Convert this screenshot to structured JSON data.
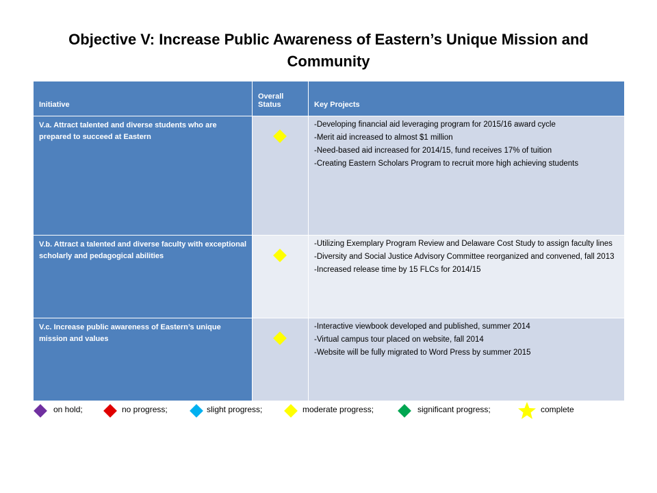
{
  "title": "Objective V: Increase Public Awareness of Eastern’s Unique Mission and Community",
  "colors": {
    "header_blue": "#4f81bd",
    "row_light": "#d0d8e8",
    "row_lighter": "#e9edf4",
    "purple": "#7030a0",
    "red": "#e00000",
    "blue": "#00b0f0",
    "yellow": "#ffff00",
    "green": "#00a651"
  },
  "table": {
    "headers": {
      "initiative": "Initiative",
      "status": "Overall Status",
      "projects": "Key Projects"
    },
    "rows": [
      {
        "initiative": "V.a. Attract talented and diverse students who are prepared to succeed at Eastern",
        "status": "moderate progress",
        "status_icon": "yellow-diamond-icon",
        "projects": [
          "-Developing financial aid leveraging program for 2015/16 award cycle",
          "-Merit aid increased to almost $1 million",
          "-Need-based aid increased for 2014/15, fund receives 17% of tuition",
          "-Creating Eastern Scholars Program to recruit more high achieving students"
        ]
      },
      {
        "initiative": "V.b. Attract a talented and diverse faculty with exceptional scholarly and pedagogical abilities",
        "status": "moderate progress",
        "status_icon": "yellow-diamond-icon",
        "projects": [
          "-Utilizing Exemplary Program Review and Delaware Cost Study to assign faculty lines",
          "-Diversity and Social Justice Advisory Committee reorganized and convened, fall 2013",
          "-Increased release time by 15 FLCs for 2014/15"
        ]
      },
      {
        "initiative": "V.c. Increase public awareness of Eastern’s unique mission and values",
        "status": "moderate progress",
        "status_icon": "yellow-diamond-icon",
        "projects": [
          "-Interactive viewbook developed and published, summer 2014",
          "-Virtual campus tour placed on website, fall 2014",
          "-Website will be fully migrated to Word Press by summer 2015"
        ]
      }
    ]
  },
  "legend": [
    {
      "label": "on hold;",
      "icon": "purple-diamond-icon"
    },
    {
      "label": "no progress;",
      "icon": "red-diamond-icon"
    },
    {
      "label": "slight progress;",
      "icon": "blue-diamond-icon"
    },
    {
      "label": "moderate progress;",
      "icon": "yellow-diamond-icon"
    },
    {
      "label": "significant progress;",
      "icon": "green-diamond-icon"
    },
    {
      "label": "complete",
      "icon": "yellow-star-icon"
    }
  ]
}
